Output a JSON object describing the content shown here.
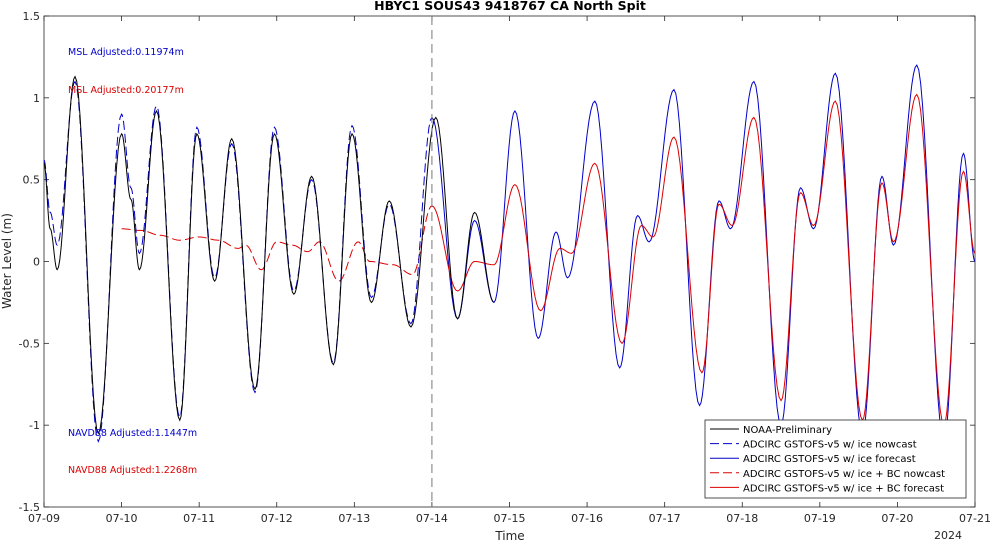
{
  "chart_data": {
    "type": "line",
    "title": "HBYC1 SOUS43 9418767 CA North Spit",
    "xlabel": "Time",
    "ylabel": "Water Level (m)",
    "year_label": "2024",
    "xlim": [
      "07-09",
      "07-21"
    ],
    "ylim": [
      -1.5,
      1.5
    ],
    "x_ticks": [
      "07-09",
      "07-10",
      "07-11",
      "07-12",
      "07-13",
      "07-14",
      "07-15",
      "07-16",
      "07-17",
      "07-18",
      "07-19",
      "07-20",
      "07-21"
    ],
    "y_ticks": [
      "1.5",
      "1",
      "0.5",
      "0",
      "-0.5",
      "-1",
      "-1.5"
    ],
    "nowcast_end": "07-14",
    "annotations": {
      "msl_blue": "MSL Adjusted:0.11974m",
      "msl_red": "MSL Adjusted:0.20177m",
      "navd_blue": "NAVD88 Adjusted:1.1447m",
      "navd_red": "NAVD88 Adjusted:1.2268m"
    },
    "legend_position": "bottom-right",
    "series": [
      {
        "name": "NOAA-Preliminary",
        "color": "#000000",
        "style": "solid",
        "points": [
          [
            0.0,
            0.6
          ],
          [
            0.08,
            0.2
          ],
          [
            0.17,
            -0.05
          ],
          [
            0.4,
            1.13
          ],
          [
            0.7,
            -1.05
          ],
          [
            1.0,
            0.78
          ],
          [
            1.12,
            0.38
          ],
          [
            1.23,
            -0.05
          ],
          [
            1.45,
            0.92
          ],
          [
            1.75,
            -0.97
          ],
          [
            1.97,
            0.78
          ],
          [
            2.2,
            -0.12
          ],
          [
            2.42,
            0.75
          ],
          [
            2.72,
            -0.78
          ],
          [
            2.97,
            0.78
          ],
          [
            3.22,
            -0.2
          ],
          [
            3.45,
            0.52
          ],
          [
            3.73,
            -0.63
          ],
          [
            3.97,
            0.78
          ],
          [
            4.22,
            -0.25
          ],
          [
            4.45,
            0.37
          ],
          [
            4.73,
            -0.4
          ],
          [
            5.05,
            0.88
          ],
          [
            5.33,
            -0.35
          ],
          [
            5.55,
            0.3
          ],
          [
            5.8,
            -0.25
          ]
        ]
      },
      {
        "name": "ADCIRC GSTOFS-v5 w/ ice nowcast",
        "color": "#0000cc",
        "style": "dashed",
        "points": [
          [
            0.0,
            0.62
          ],
          [
            0.08,
            0.3
          ],
          [
            0.17,
            0.1
          ],
          [
            0.4,
            1.1
          ],
          [
            0.7,
            -1.1
          ],
          [
            1.0,
            0.9
          ],
          [
            1.12,
            0.45
          ],
          [
            1.23,
            0.05
          ],
          [
            1.45,
            0.95
          ],
          [
            1.75,
            -0.95
          ],
          [
            1.97,
            0.82
          ],
          [
            2.2,
            -0.1
          ],
          [
            2.42,
            0.72
          ],
          [
            2.72,
            -0.8
          ],
          [
            2.97,
            0.82
          ],
          [
            3.22,
            -0.18
          ],
          [
            3.45,
            0.5
          ],
          [
            3.73,
            -0.62
          ],
          [
            3.97,
            0.83
          ],
          [
            4.22,
            -0.22
          ],
          [
            4.45,
            0.35
          ],
          [
            4.73,
            -0.38
          ],
          [
            5.0,
            0.88
          ]
        ]
      },
      {
        "name": "ADCIRC GSTOFS-v5 w/ ice forecast",
        "color": "#0000cc",
        "style": "solid",
        "points": [
          [
            5.0,
            0.88
          ],
          [
            5.33,
            -0.35
          ],
          [
            5.55,
            0.25
          ],
          [
            5.8,
            -0.25
          ],
          [
            6.07,
            0.92
          ],
          [
            6.37,
            -0.47
          ],
          [
            6.6,
            0.18
          ],
          [
            6.75,
            -0.1
          ],
          [
            7.1,
            0.98
          ],
          [
            7.42,
            -0.65
          ],
          [
            7.65,
            0.28
          ],
          [
            7.8,
            0.12
          ],
          [
            8.12,
            1.05
          ],
          [
            8.45,
            -0.88
          ],
          [
            8.7,
            0.37
          ],
          [
            8.85,
            0.2
          ],
          [
            9.15,
            1.1
          ],
          [
            9.5,
            -1.0
          ],
          [
            9.75,
            0.45
          ],
          [
            9.92,
            0.2
          ],
          [
            10.2,
            1.15
          ],
          [
            10.55,
            -1.05
          ],
          [
            10.8,
            0.52
          ],
          [
            10.95,
            0.1
          ],
          [
            11.25,
            1.2
          ],
          [
            11.6,
            -1.1
          ],
          [
            11.85,
            0.66
          ],
          [
            12.0,
            0.0
          ]
        ]
      },
      {
        "name": "ADCIRC GSTOFS-v5 w/ ice + BC nowcast",
        "color": "#dd0000",
        "style": "dashed",
        "points": [
          [
            1.0,
            0.2
          ],
          [
            1.25,
            0.19
          ],
          [
            1.5,
            0.16
          ],
          [
            1.75,
            0.13
          ],
          [
            2.0,
            0.15
          ],
          [
            2.25,
            0.13
          ],
          [
            2.5,
            0.08
          ],
          [
            2.6,
            0.1
          ],
          [
            2.8,
            -0.05
          ],
          [
            3.0,
            0.12
          ],
          [
            3.2,
            0.1
          ],
          [
            3.4,
            0.06
          ],
          [
            3.55,
            0.12
          ],
          [
            3.8,
            -0.12
          ],
          [
            4.05,
            0.12
          ],
          [
            4.2,
            0.0
          ],
          [
            4.5,
            -0.02
          ],
          [
            4.75,
            -0.08
          ],
          [
            5.0,
            0.34
          ]
        ]
      },
      {
        "name": "ADCIRC GSTOFS-v5 w/ ice + BC forecast",
        "color": "#dd0000",
        "style": "solid",
        "points": [
          [
            5.0,
            0.34
          ],
          [
            5.33,
            -0.18
          ],
          [
            5.55,
            0.0
          ],
          [
            5.8,
            -0.02
          ],
          [
            6.07,
            0.47
          ],
          [
            6.4,
            -0.3
          ],
          [
            6.65,
            0.08
          ],
          [
            6.8,
            0.05
          ],
          [
            7.1,
            0.6
          ],
          [
            7.45,
            -0.5
          ],
          [
            7.7,
            0.22
          ],
          [
            7.85,
            0.15
          ],
          [
            8.12,
            0.76
          ],
          [
            8.48,
            -0.68
          ],
          [
            8.7,
            0.35
          ],
          [
            8.87,
            0.22
          ],
          [
            9.15,
            0.88
          ],
          [
            9.5,
            -0.85
          ],
          [
            9.75,
            0.42
          ],
          [
            9.92,
            0.22
          ],
          [
            10.2,
            0.98
          ],
          [
            10.55,
            -0.97
          ],
          [
            10.8,
            0.48
          ],
          [
            10.95,
            0.12
          ],
          [
            11.25,
            1.02
          ],
          [
            11.6,
            -1.0
          ],
          [
            11.85,
            0.55
          ],
          [
            12.0,
            0.05
          ]
        ]
      }
    ]
  }
}
